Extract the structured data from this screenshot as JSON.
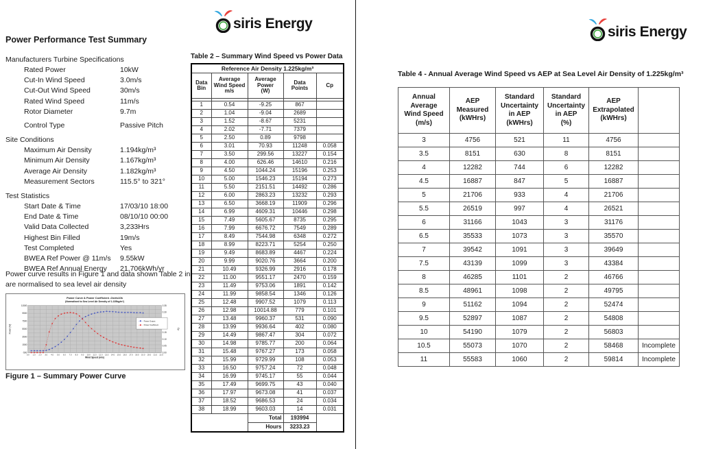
{
  "logo": {
    "text": "siris Energy",
    "colors": {
      "o_ring": "#111111",
      "o_inner": "#3fa33f",
      "blade_left": "#35a8e0",
      "blade_right": "#e8413c"
    }
  },
  "page1": {
    "title": "Power Performance Test Summary",
    "sections": [
      {
        "heading": "Manufacturers Turbine Specifications",
        "items": [
          {
            "label": "Rated Power",
            "value": "10kW"
          },
          {
            "label": "Cut-In Wind Speed",
            "value": "3.0m/s"
          },
          {
            "label": "Cut-Out Wind Speed",
            "value": "30m/s"
          },
          {
            "label": "Rated Wind Speed",
            "value": "11m/s"
          },
          {
            "label": "Rotor Diameter",
            "value": "9.7m"
          },
          {
            "label": "Control Type",
            "value": "Passive Pitch",
            "gap": true
          }
        ]
      },
      {
        "heading": "Site Conditions",
        "items": [
          {
            "label": "Maximum Air Density",
            "value": "1.194kg/m³"
          },
          {
            "label": "Minimum Air Density",
            "value": "1.167kg/m³"
          },
          {
            "label": "Average Air Density",
            "value": "1.182kg/m³"
          },
          {
            "label": "Measurement Sectors",
            "value": "115.5° to 321°"
          }
        ]
      },
      {
        "heading": "Test Statistics",
        "items": [
          {
            "label": "Start Date & Time",
            "value": "17/03/10 18:00"
          },
          {
            "label": "End Date & Time",
            "value": "08/10/10 00:00"
          },
          {
            "label": "Valid Data Collected",
            "value": "3,233Hrs"
          },
          {
            "label": "Highest Bin Filled",
            "value": "19m/s"
          },
          {
            "label": "Test Completed",
            "value": "Yes"
          },
          {
            "label": "BWEA Ref Power @ 11m/s",
            "value": "9.55kW"
          },
          {
            "label": "BWEA Ref Annual Energy",
            "value": "21,706kWh/yr"
          }
        ]
      }
    ],
    "note": "Power curve results in Figure 1 and data shown Table 2 in are normalised to sea level air density",
    "figure_caption": "Figure 1 – Summary Power Curve",
    "table2": {
      "title": "Table 2 – Summary Wind Speed vs Power Data",
      "span_header": "Reference Air Density 1.225kg/m³",
      "columns": [
        "Data\nBin",
        "Average\nWind Speed\nm/s",
        "Average\nPower\n(W)",
        "Data\nPoints",
        "Cp"
      ],
      "rows": [
        [
          "1",
          "0.54",
          "-9.25",
          "867",
          ""
        ],
        [
          "2",
          "1.04",
          "-9.04",
          "2689",
          ""
        ],
        [
          "3",
          "1.52",
          "-8.67",
          "5231",
          ""
        ],
        [
          "4",
          "2.02",
          "-7.71",
          "7379",
          ""
        ],
        [
          "5",
          "2.50",
          "0.89",
          "9798",
          ""
        ],
        [
          "6",
          "3.01",
          "70.93",
          "11248",
          "0.058"
        ],
        [
          "7",
          "3.50",
          "299.56",
          "13227",
          "0.154"
        ],
        [
          "8",
          "4.00",
          "626.46",
          "14610",
          "0.216"
        ],
        [
          "9",
          "4.50",
          "1044.24",
          "15196",
          "0.253"
        ],
        [
          "10",
          "5.00",
          "1546.23",
          "15194",
          "0.273"
        ],
        [
          "11",
          "5.50",
          "2151.51",
          "14492",
          "0.286"
        ],
        [
          "12",
          "6.00",
          "2863.23",
          "13232",
          "0.293"
        ],
        [
          "13",
          "6.50",
          "3668.19",
          "11909",
          "0.296"
        ],
        [
          "14",
          "6.99",
          "4609.31",
          "10446",
          "0.298"
        ],
        [
          "15",
          "7.49",
          "5605.67",
          "8735",
          "0.295"
        ],
        [
          "16",
          "7.99",
          "6676.72",
          "7549",
          "0.289"
        ],
        [
          "17",
          "8.49",
          "7544.98",
          "6348",
          "0.272"
        ],
        [
          "18",
          "8.99",
          "8223.71",
          "5254",
          "0.250"
        ],
        [
          "19",
          "9.49",
          "8683.89",
          "4467",
          "0.224"
        ],
        [
          "20",
          "9.99",
          "9020.76",
          "3664",
          "0.200"
        ],
        [
          "21",
          "10.49",
          "9326.99",
          "2916",
          "0.178"
        ],
        [
          "22",
          "11.00",
          "9551.17",
          "2470",
          "0.159"
        ],
        [
          "23",
          "11.49",
          "9753.06",
          "1891",
          "0.142"
        ],
        [
          "24",
          "11.99",
          "9858.54",
          "1346",
          "0.126"
        ],
        [
          "25",
          "12.48",
          "9907.52",
          "1079",
          "0.113"
        ],
        [
          "26",
          "12.98",
          "10014.88",
          "779",
          "0.101"
        ],
        [
          "27",
          "13.48",
          "9960.37",
          "531",
          "0.090"
        ],
        [
          "28",
          "13.99",
          "9936.64",
          "402",
          "0.080"
        ],
        [
          "29",
          "14.49",
          "9867.47",
          "304",
          "0.072"
        ],
        [
          "30",
          "14.98",
          "9785.77",
          "200",
          "0.064"
        ],
        [
          "31",
          "15.48",
          "9767.27",
          "173",
          "0.058"
        ],
        [
          "32",
          "15.99",
          "9729.99",
          "108",
          "0.053"
        ],
        [
          "33",
          "16.50",
          "9757.24",
          "72",
          "0.048"
        ],
        [
          "34",
          "16.99",
          "9745.17",
          "55",
          "0.044"
        ],
        [
          "35",
          "17.49",
          "9699.75",
          "43",
          "0.040"
        ],
        [
          "36",
          "17.97",
          "9673.08",
          "41",
          "0.037"
        ],
        [
          "37",
          "18.52",
          "9686.53",
          "24",
          "0.034"
        ],
        [
          "38",
          "18.99",
          "9603.03",
          "14",
          "0.031"
        ]
      ],
      "total_label": "Total",
      "total_value": "193994",
      "hours_label": "Hours",
      "hours_value": "3233.23"
    }
  },
  "page2": {
    "table4": {
      "title": "Table 4 - Annual Average Wind Speed vs AEP at Sea Level Air Density of 1.225kg/m³",
      "columns": [
        "Annual\nAverage\nWind Speed\n(m/s)",
        "AEP\nMeasured\n(kWHrs)",
        "Standard\nUncertainty\nin AEP\n(kWHrs)",
        "Standard\nUncertainty\nin AEP\n(%)",
        "AEP\nExtrapolated\n(kWHrs)",
        ""
      ],
      "rows": [
        [
          "3",
          "4756",
          "521",
          "11",
          "4756",
          ""
        ],
        [
          "3.5",
          "8151",
          "630",
          "8",
          "8151",
          ""
        ],
        [
          "4",
          "12282",
          "744",
          "6",
          "12282",
          ""
        ],
        [
          "4.5",
          "16887",
          "847",
          "5",
          "16887",
          ""
        ],
        [
          "5",
          "21706",
          "933",
          "4",
          "21706",
          ""
        ],
        [
          "5.5",
          "26519",
          "997",
          "4",
          "26521",
          ""
        ],
        [
          "6",
          "31166",
          "1043",
          "3",
          "31176",
          ""
        ],
        [
          "6.5",
          "35533",
          "1073",
          "3",
          "35570",
          ""
        ],
        [
          "7",
          "39542",
          "1091",
          "3",
          "39649",
          ""
        ],
        [
          "7.5",
          "43139",
          "1099",
          "3",
          "43384",
          ""
        ],
        [
          "8",
          "46285",
          "1101",
          "2",
          "46766",
          ""
        ],
        [
          "8.5",
          "48961",
          "1098",
          "2",
          "49795",
          ""
        ],
        [
          "9",
          "51162",
          "1094",
          "2",
          "52474",
          ""
        ],
        [
          "9.5",
          "52897",
          "1087",
          "2",
          "54808",
          ""
        ],
        [
          "10",
          "54190",
          "1079",
          "2",
          "56803",
          ""
        ],
        [
          "10.5",
          "55073",
          "1070",
          "2",
          "58468",
          "Incomplete"
        ],
        [
          "11",
          "55583",
          "1060",
          "2",
          "59814",
          "Incomplete"
        ]
      ]
    }
  },
  "chart_data": {
    "type": "line",
    "title": "Power Curve & Power Coefficient -Osiris10k",
    "subtitle": "(Normalised to Sea Level Air Density of 1.225kg/m³)",
    "xlabel": "Wind Speed (m/s)",
    "ylabel_left": "Power (W)",
    "ylabel_right": "Cp",
    "xlim": [
      0,
      22
    ],
    "x_tick_step": 1,
    "ylim_left": [
      -500,
      11500
    ],
    "grid_step_left": 1000,
    "yticks_left": [
      -500,
      1500,
      3500,
      5500,
      7500,
      9500,
      11500
    ],
    "ylim_right": [
      0,
      0.35
    ],
    "yticks_right": [
      0,
      0.05,
      0.1,
      0.15,
      0.2,
      0.25,
      0.3,
      0.35
    ],
    "legend": [
      "Power Output",
      "Power Coefficient"
    ],
    "legend_position": "middle-right",
    "grid": true,
    "plot_bg": "#c9c9c9",
    "x": [
      0.54,
      1.04,
      1.52,
      2.02,
      2.5,
      3.01,
      3.5,
      4.0,
      4.5,
      5.0,
      5.5,
      6.0,
      6.5,
      6.99,
      7.49,
      7.99,
      8.49,
      8.99,
      9.49,
      9.99,
      10.49,
      11.0,
      11.49,
      11.99,
      12.48,
      12.98,
      13.48,
      13.99,
      14.49,
      14.98,
      15.48,
      15.99,
      16.5,
      16.99,
      17.49,
      17.97,
      18.52,
      18.99
    ],
    "series": [
      {
        "name": "Power Output",
        "axis": "left",
        "color": "#3c4fc0",
        "values": [
          -9.25,
          -9.04,
          -8.67,
          -7.71,
          0.89,
          70.93,
          299.56,
          626.46,
          1044.24,
          1546.23,
          2151.51,
          2863.23,
          3668.19,
          4609.31,
          5605.67,
          6676.72,
          7544.98,
          8223.71,
          8683.89,
          9020.76,
          9326.99,
          9551.17,
          9753.06,
          9858.54,
          9907.52,
          10014.88,
          9960.37,
          9936.64,
          9867.47,
          9785.77,
          9767.27,
          9729.99,
          9757.24,
          9745.17,
          9699.75,
          9673.08,
          9686.53,
          9603.03
        ]
      },
      {
        "name": "Power Coefficient",
        "axis": "right",
        "color": "#e02a2a",
        "values": [
          0,
          0,
          0,
          0,
          0,
          0.058,
          0.154,
          0.216,
          0.253,
          0.273,
          0.286,
          0.293,
          0.296,
          0.298,
          0.295,
          0.289,
          0.272,
          0.25,
          0.224,
          0.2,
          0.178,
          0.159,
          0.142,
          0.126,
          0.113,
          0.101,
          0.09,
          0.08,
          0.072,
          0.064,
          0.058,
          0.053,
          0.048,
          0.044,
          0.04,
          0.037,
          0.034,
          0.031
        ]
      }
    ]
  }
}
